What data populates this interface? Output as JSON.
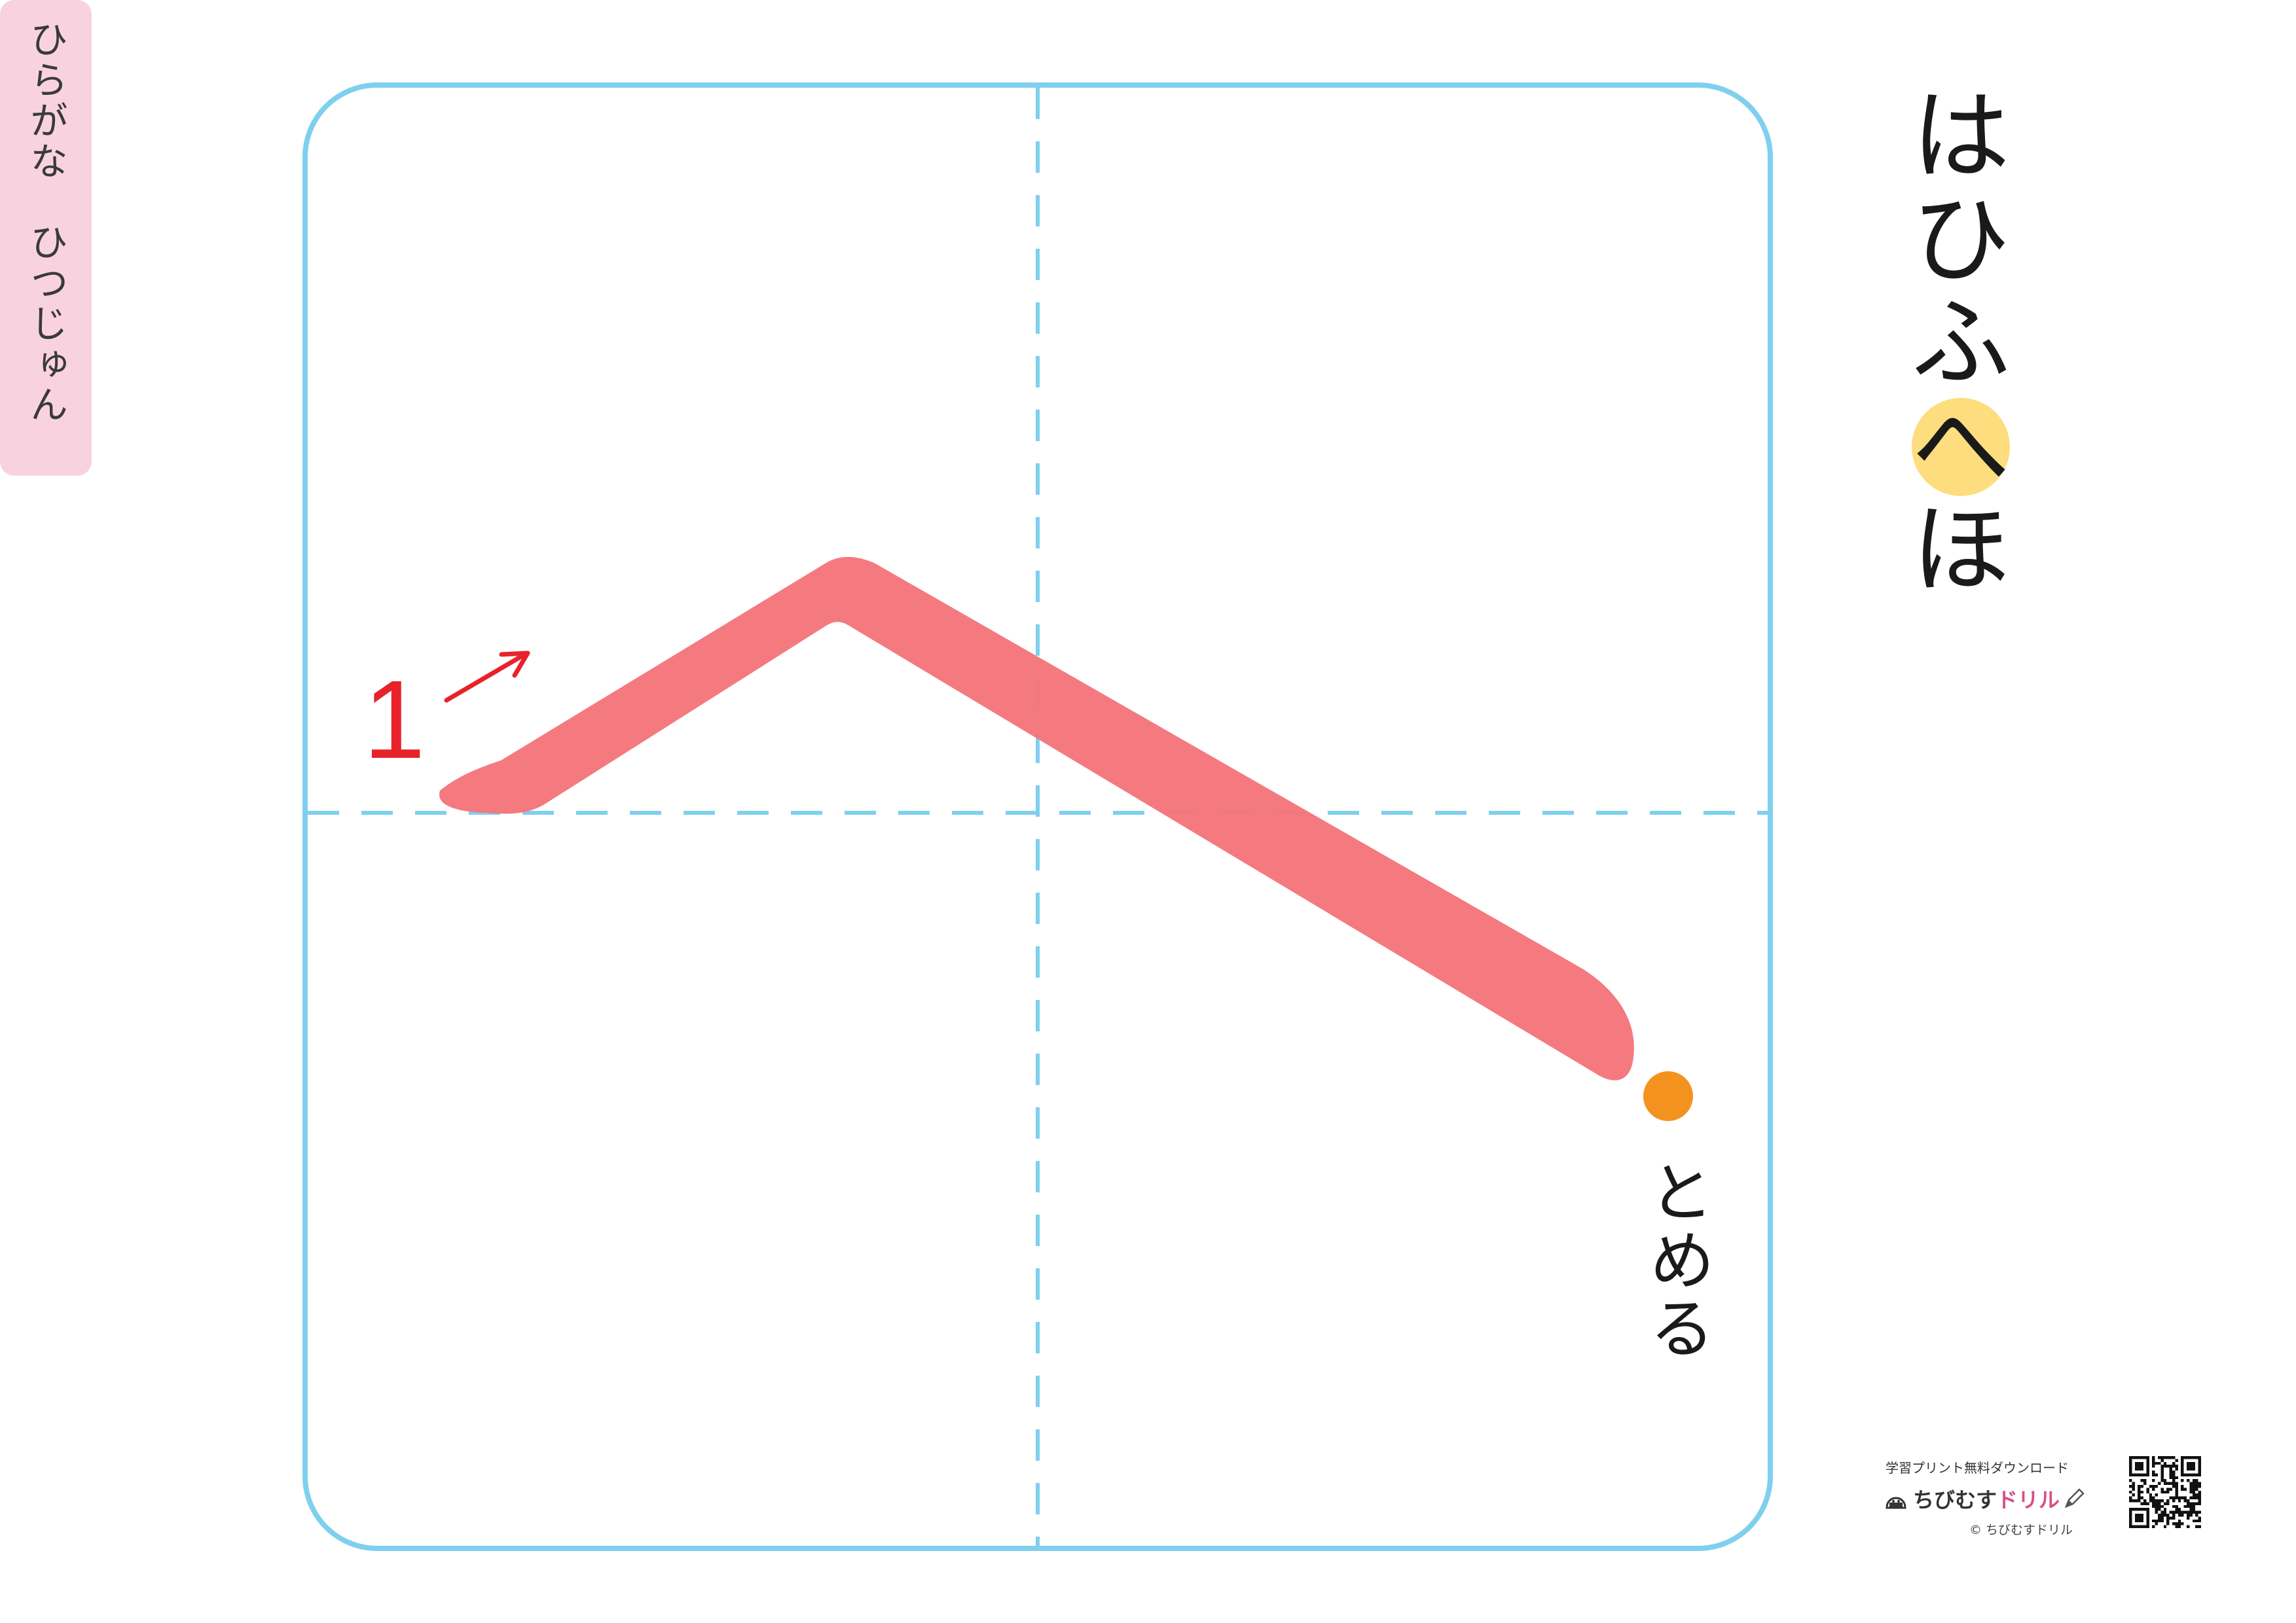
{
  "worksheet": {
    "series_title": "ひらがな　ひつじゅん",
    "kana_row": [
      "は",
      "ひ",
      "ふ",
      "へ",
      "ほ"
    ],
    "current_index": 3,
    "stroke_number": "1",
    "stop_label": "とめる",
    "colors": {
      "grid_border": "#7fd0ee",
      "stroke": "#f4767b",
      "arrow": "#e8222a",
      "stop_dot": "#f4921f",
      "highlight": "#fddd7d",
      "title_bg": "#f8d3df"
    }
  },
  "footer": {
    "tagline": "学習プリント無料ダウンロード",
    "brand_part1": "ちびむす",
    "brand_part2": "ドリル",
    "copyright": "© ちびむすドリル"
  }
}
